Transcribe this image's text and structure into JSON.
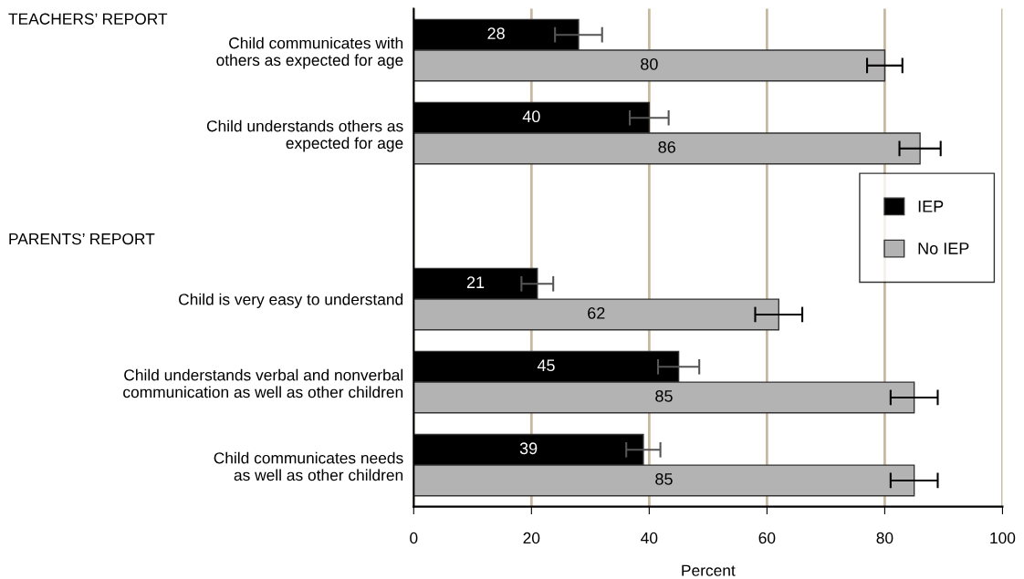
{
  "chart_data": {
    "type": "bar",
    "orientation": "horizontal",
    "xlabel": "Percent",
    "categories": [
      "Child communicates with\nothers as expected for age",
      "Child understands others as\nexpected for age",
      null,
      "Child is very easy to understand",
      "Child understands verbal and nonverbal\ncommunication as well as other children",
      "Child communicates needs\nas well as other children"
    ],
    "series": [
      {
        "name": "IEP",
        "color": "#000000",
        "values": [
          28,
          40,
          null,
          21,
          45,
          39
        ],
        "errors": [
          4,
          3.3,
          null,
          2.7,
          3.5,
          2.9
        ]
      },
      {
        "name": "No IEP",
        "color": "#b3b3b3",
        "values": [
          80,
          86,
          null,
          62,
          85,
          85
        ],
        "errors": [
          3,
          3.5,
          null,
          4,
          4,
          4
        ]
      }
    ],
    "xlim": [
      0,
      100
    ],
    "xticks": [
      0,
      20,
      40,
      60,
      80,
      100
    ],
    "grid": "x",
    "legend": "right",
    "data_labels": true,
    "annotations": [
      "TEACHERS’ REPORT",
      "PARENTS’ REPORT"
    ]
  }
}
